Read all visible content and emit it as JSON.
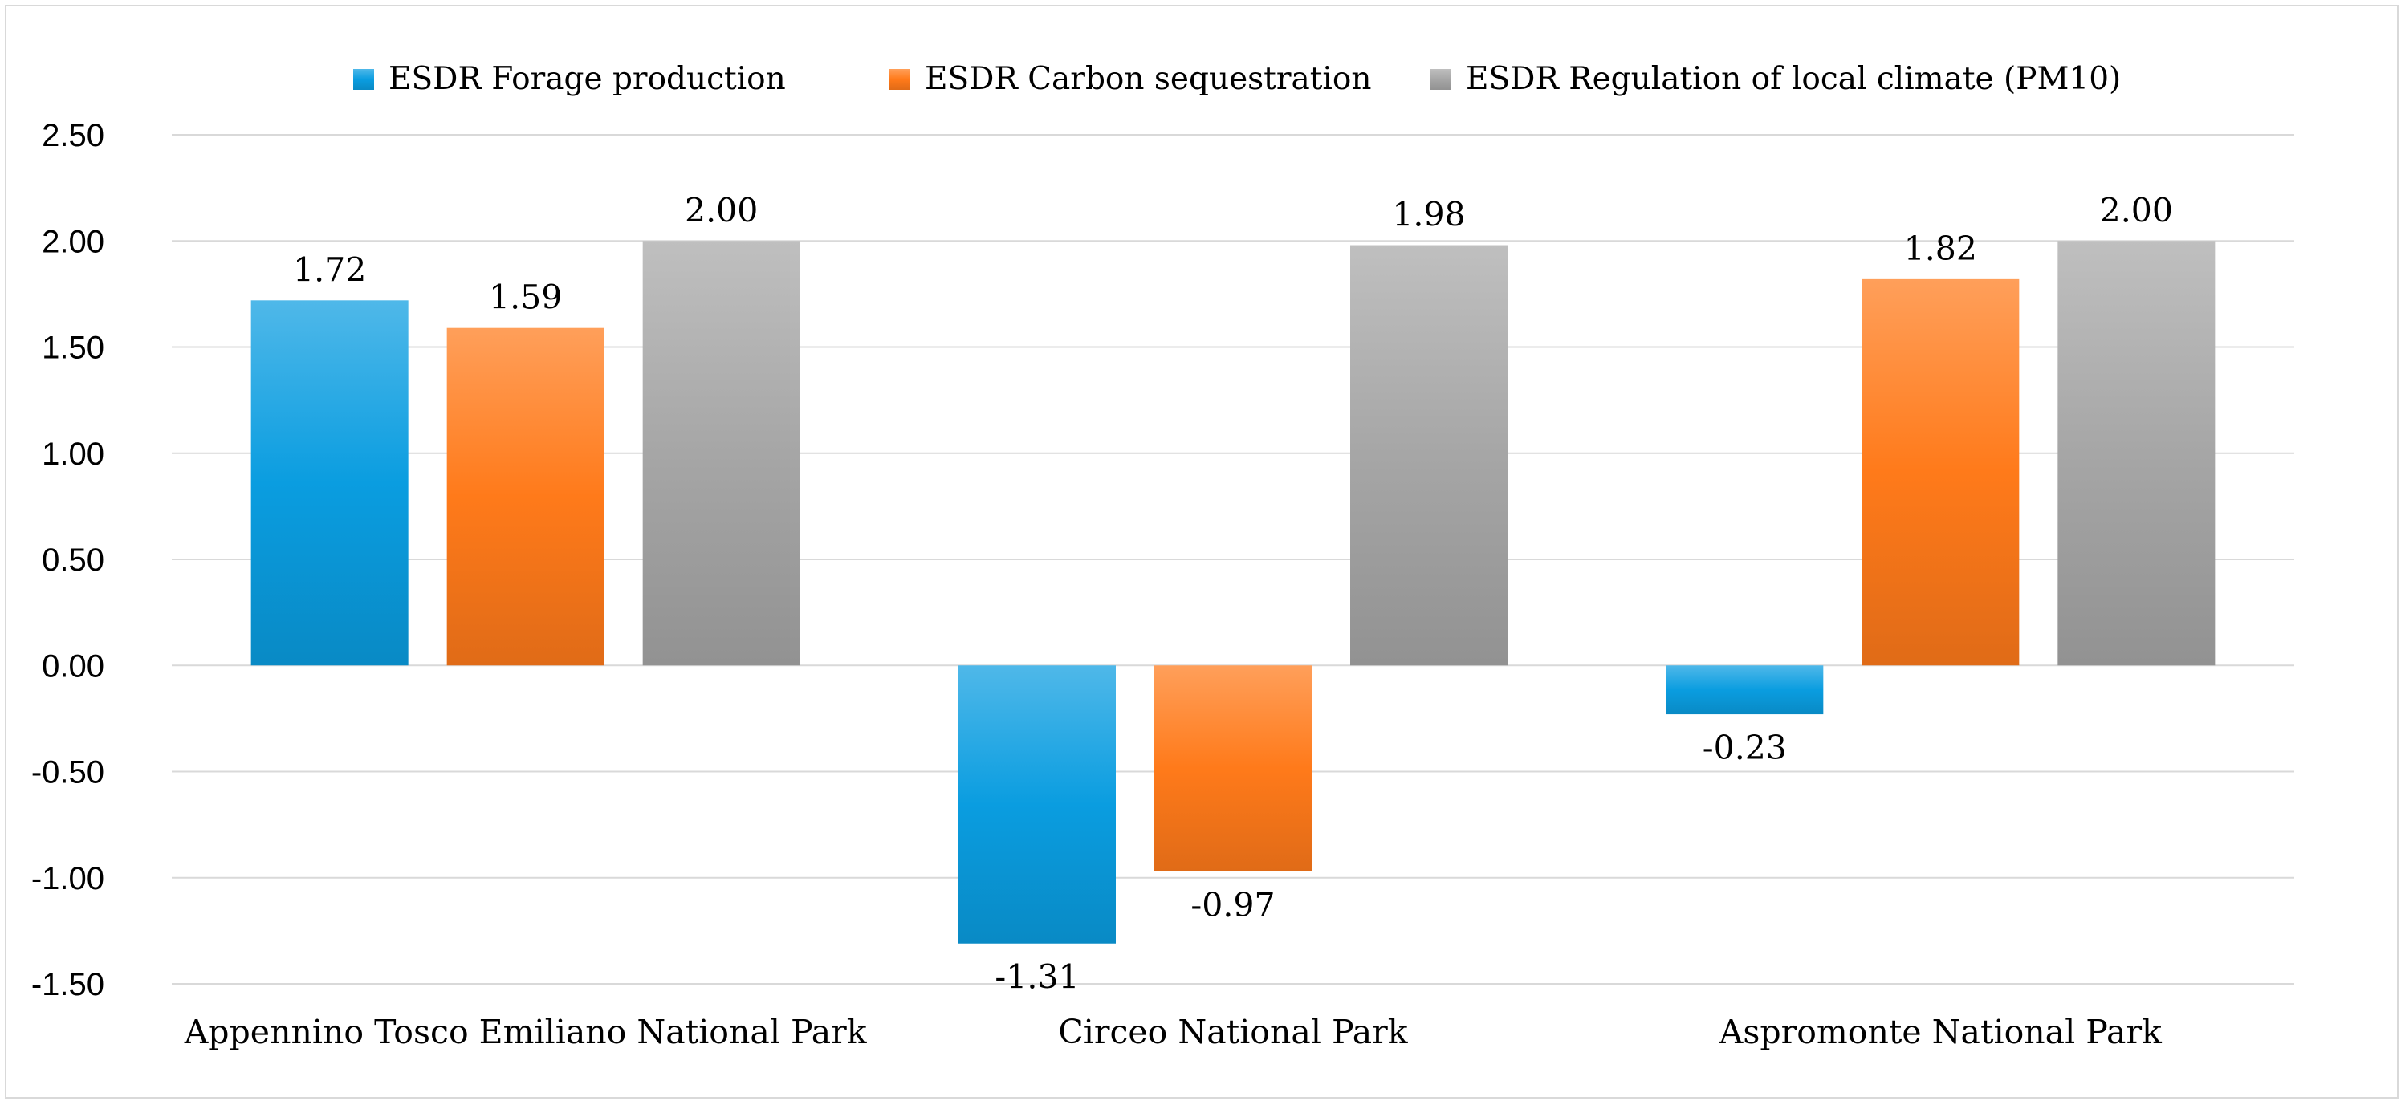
{
  "chart_data": {
    "type": "bar",
    "title": "",
    "xlabel": "",
    "ylabel": "",
    "categories": [
      "Appennino Tosco Emiliano National Park",
      "Circeo National Park",
      "Aspromonte National Park"
    ],
    "series": [
      {
        "name": "ESDR Forage production",
        "values": [
          1.72,
          -1.31,
          -0.23
        ],
        "labels": [
          "1.72",
          "-1.31",
          "-0.23"
        ],
        "color": "#0a9de0"
      },
      {
        "name": "ESDR Carbon sequestration",
        "values": [
          1.59,
          -0.97,
          1.82
        ],
        "labels": [
          "1.59",
          "-0.97",
          "1.82"
        ],
        "color": "#ff7a1a"
      },
      {
        "name": "ESDR Regulation of local climate (PM10)",
        "values": [
          2.0,
          1.98,
          2.0
        ],
        "labels": [
          "2.00",
          "1.98",
          "2.00"
        ],
        "color": "#a6a6a6"
      }
    ],
    "ylim": [
      -1.5,
      2.5
    ],
    "yticks": [
      2.5,
      2.0,
      1.5,
      1.0,
      0.5,
      0.0,
      -0.5,
      -1.0,
      -1.5
    ],
    "ytick_labels": [
      "2.50",
      "2.00",
      "1.50",
      "1.00",
      "0.50",
      "0.00",
      "-0.50",
      "-1.00",
      "-1.50"
    ],
    "grid": true,
    "legend_position": "top-center"
  }
}
